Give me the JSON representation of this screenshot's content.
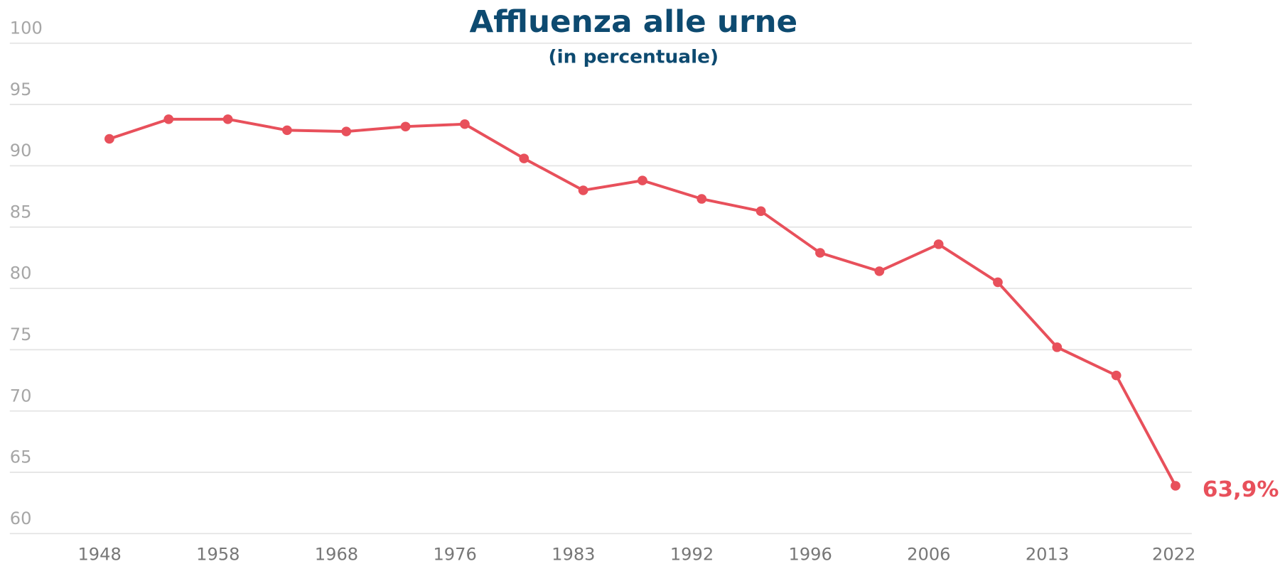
{
  "chart_data": {
    "type": "line",
    "title": "Affluenza alle urne",
    "subtitle": "(in percentuale)",
    "categories": [
      "1948",
      null,
      "1958",
      null,
      "1968",
      null,
      "1976",
      null,
      "1983",
      null,
      "1992",
      null,
      "1996",
      null,
      "2006",
      null,
      "2013",
      null,
      "2022"
    ],
    "series": [
      {
        "name": "Affluenza",
        "color": "#e8505b",
        "values": [
          92.2,
          93.8,
          93.8,
          92.9,
          92.8,
          93.2,
          93.4,
          90.6,
          88.0,
          88.8,
          87.3,
          86.3,
          82.9,
          81.4,
          83.6,
          80.5,
          75.2,
          72.9,
          63.9
        ],
        "value_labels": [
          null,
          null,
          null,
          null,
          null,
          null,
          null,
          null,
          null,
          null,
          null,
          null,
          null,
          null,
          null,
          null,
          null,
          null,
          "63,9%"
        ]
      }
    ],
    "ylim": [
      60,
      100
    ],
    "yticks": [
      60,
      65,
      70,
      75,
      80,
      85,
      90,
      95,
      100
    ],
    "grid": true
  }
}
